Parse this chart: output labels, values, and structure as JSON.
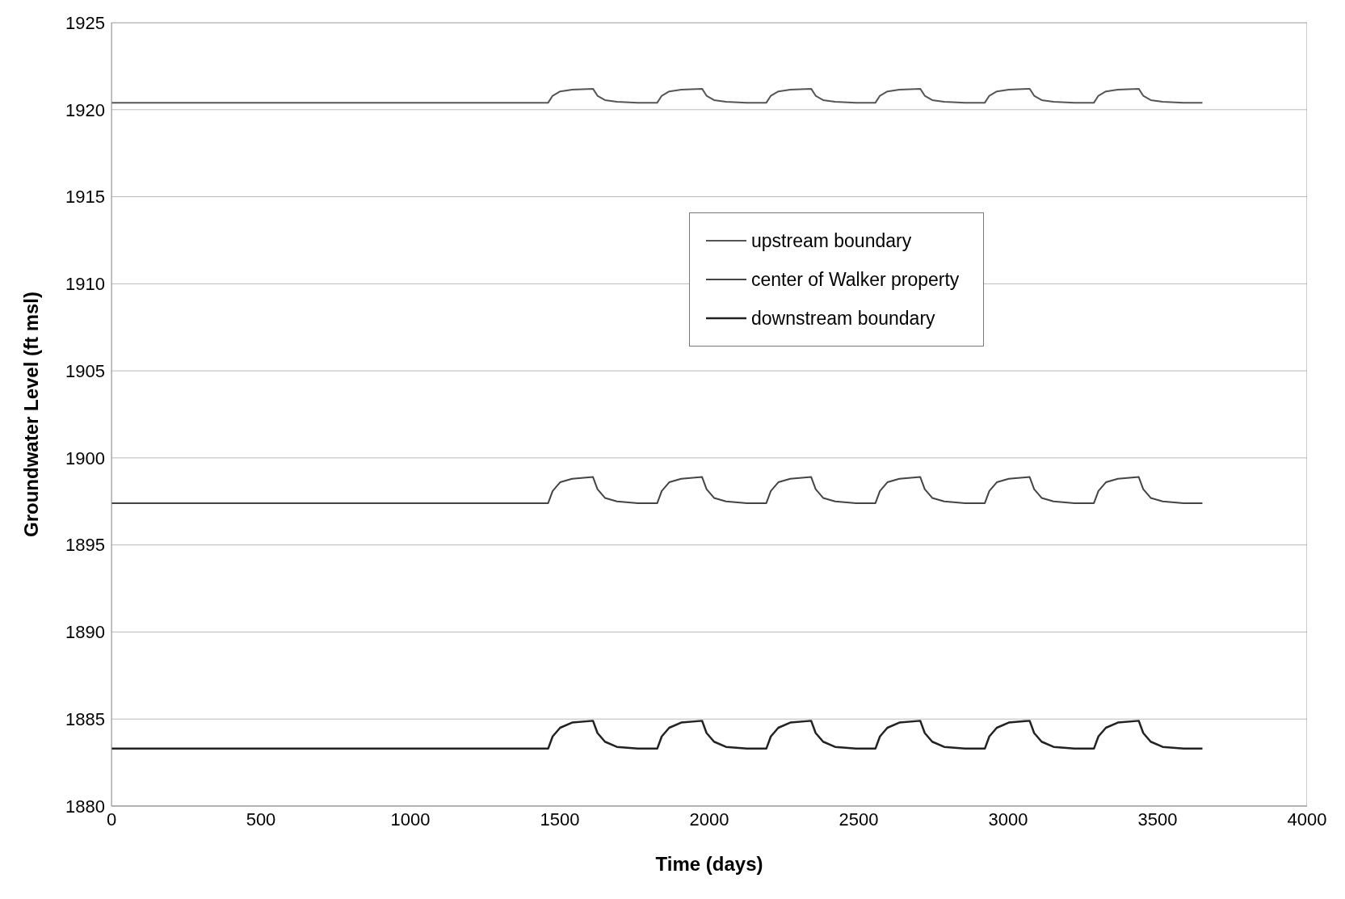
{
  "chart_data": {
    "type": "line",
    "xlabel": "Time (days)",
    "ylabel": "Groundwater Level (ft msl)",
    "x": [
      0,
      1461,
      1476,
      1501,
      1541,
      1611,
      1626,
      1651,
      1691,
      1761,
      1826,
      1841,
      1866,
      1906,
      1976,
      1991,
      2016,
      2056,
      2126,
      2191,
      2206,
      2231,
      2271,
      2341,
      2356,
      2381,
      2421,
      2491,
      2556,
      2571,
      2596,
      2636,
      2706,
      2721,
      2746,
      2786,
      2856,
      2922,
      2937,
      2962,
      3002,
      3072,
      3087,
      3112,
      3152,
      3222,
      3287,
      3302,
      3327,
      3367,
      3437,
      3452,
      3477,
      3517,
      3587,
      3650
    ],
    "series": [
      {
        "name": "upstream boundary",
        "color": "#555555",
        "values": [
          1920.4,
          1920.4,
          1920.8,
          1921.05,
          1921.15,
          1921.2,
          1920.8,
          1920.55,
          1920.45,
          1920.4,
          1920.4,
          1920.8,
          1921.05,
          1921.15,
          1921.2,
          1920.8,
          1920.55,
          1920.45,
          1920.4,
          1920.4,
          1920.8,
          1921.05,
          1921.15,
          1921.2,
          1920.8,
          1920.55,
          1920.45,
          1920.4,
          1920.4,
          1920.8,
          1921.05,
          1921.15,
          1921.2,
          1920.8,
          1920.55,
          1920.45,
          1920.4,
          1920.4,
          1920.8,
          1921.05,
          1921.15,
          1921.2,
          1920.8,
          1920.55,
          1920.45,
          1920.4,
          1920.4,
          1920.8,
          1921.05,
          1921.15,
          1921.2,
          1920.8,
          1920.55,
          1920.45,
          1920.4,
          1920.4
        ]
      },
      {
        "name": "center of Walker property",
        "color": "#444444",
        "values": [
          1897.4,
          1897.4,
          1898.1,
          1898.6,
          1898.8,
          1898.9,
          1898.2,
          1897.7,
          1897.5,
          1897.4,
          1897.4,
          1898.1,
          1898.6,
          1898.8,
          1898.9,
          1898.2,
          1897.7,
          1897.5,
          1897.4,
          1897.4,
          1898.1,
          1898.6,
          1898.8,
          1898.9,
          1898.2,
          1897.7,
          1897.5,
          1897.4,
          1897.4,
          1898.1,
          1898.6,
          1898.8,
          1898.9,
          1898.2,
          1897.7,
          1897.5,
          1897.4,
          1897.4,
          1898.1,
          1898.6,
          1898.8,
          1898.9,
          1898.2,
          1897.7,
          1897.5,
          1897.4,
          1897.4,
          1898.1,
          1898.6,
          1898.8,
          1898.9,
          1898.2,
          1897.7,
          1897.5,
          1897.4,
          1897.4
        ]
      },
      {
        "name": "downstream boundary",
        "color": "#222222",
        "values": [
          1883.3,
          1883.3,
          1884.0,
          1884.5,
          1884.8,
          1884.9,
          1884.2,
          1883.7,
          1883.4,
          1883.3,
          1883.3,
          1884.0,
          1884.5,
          1884.8,
          1884.9,
          1884.2,
          1883.7,
          1883.4,
          1883.3,
          1883.3,
          1884.0,
          1884.5,
          1884.8,
          1884.9,
          1884.2,
          1883.7,
          1883.4,
          1883.3,
          1883.3,
          1884.0,
          1884.5,
          1884.8,
          1884.9,
          1884.2,
          1883.7,
          1883.4,
          1883.3,
          1883.3,
          1884.0,
          1884.5,
          1884.8,
          1884.9,
          1884.2,
          1883.7,
          1883.4,
          1883.3,
          1883.3,
          1884.0,
          1884.5,
          1884.8,
          1884.9,
          1884.2,
          1883.7,
          1883.4,
          1883.3,
          1883.3
        ]
      }
    ],
    "xlim": [
      0,
      4000
    ],
    "xticks": [
      0,
      500,
      1000,
      1500,
      2000,
      2500,
      3000,
      3500,
      4000
    ],
    "ylim": [
      1880,
      1925
    ],
    "yticks": [
      1880,
      1885,
      1890,
      1895,
      1900,
      1905,
      1910,
      1915,
      1920,
      1925
    ],
    "grid": "y",
    "legend": "top right",
    "marker": "none",
    "line_style": "solid"
  }
}
